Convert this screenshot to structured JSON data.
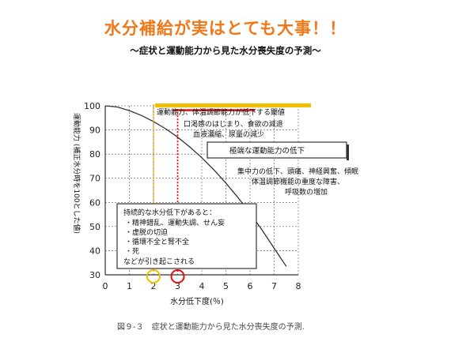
{
  "header": {
    "title": "水分補給が実はとても大事！！",
    "subtitle": "～症状と運動能力から見た水分喪失度の予測～"
  },
  "caption": "図９-３　症状と運動能力から見た水分喪失度の予測.",
  "colors": {
    "title": "#f07818",
    "yellow_marker": "#f0c000",
    "red_marker": "#e01010",
    "curve": "#333333"
  },
  "chart_data": {
    "type": "line",
    "xlabel": "水分低下度(％)",
    "ylabel": "運動能力 (補正水分時を100とした値)",
    "xlim": [
      0,
      8
    ],
    "ylim": [
      30,
      100
    ],
    "xticks": [
      "0",
      "1",
      "2",
      "3",
      "4",
      "5",
      "6",
      "7",
      "8"
    ],
    "yticks": [
      "30",
      "40",
      "50",
      "60",
      "70",
      "80",
      "90",
      "100"
    ],
    "grid": true,
    "series": [
      {
        "x": [
          0,
          0.5,
          1,
          1.5,
          2,
          2.5,
          3,
          3.5,
          4,
          4.5,
          5,
          5.5,
          6,
          6.5,
          7,
          7.5
        ],
        "y": [
          100,
          99.5,
          98,
          96,
          93.5,
          90.5,
          87,
          83,
          78.5,
          73.5,
          68,
          62,
          55.5,
          48.5,
          41,
          33.5
        ]
      }
    ],
    "annotations": {
      "top_line": "運動能力、体温調節能力が低下する閾値",
      "group_1": [
        "口渇感のはじまり、食欲の減退",
        "血液濃縮、尿量の減少"
      ],
      "box_1": "極端な運動能力の低下",
      "group_2": [
        "集中力の低下、頭痛、神経興奮、傾眠",
        "体温調節機能の重度な障害、",
        "呼吸数の増加"
      ],
      "box_2": [
        "持続的な水分低下があると：",
        "・精神錯乱、運動失調、せん妄",
        "・虚脱の切迫",
        "・循環不全と腎不全",
        "・死",
        "などが引き起こされる"
      ]
    },
    "markers": [
      {
        "x": 2,
        "color": "yellow"
      },
      {
        "x": 3,
        "color": "red"
      }
    ]
  }
}
